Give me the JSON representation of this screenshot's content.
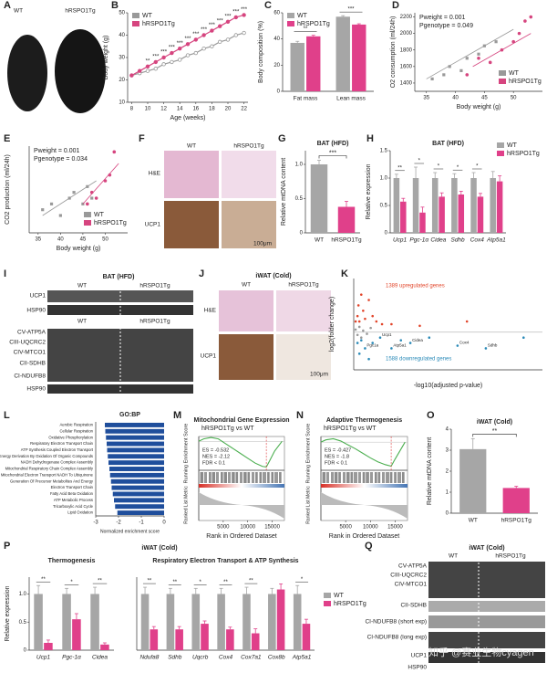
{
  "chart_data": [
    {
      "panel": "B",
      "type": "line",
      "x": [
        8,
        9,
        10,
        11,
        12,
        13,
        14,
        15,
        16,
        17,
        18,
        19,
        20,
        21,
        22
      ],
      "xlim": [
        7.5,
        22.5
      ],
      "xticks": [
        8,
        10,
        12,
        14,
        16,
        18,
        20,
        22
      ],
      "ylim": [
        10,
        50
      ],
      "yticks": [
        10,
        20,
        30,
        40,
        50
      ],
      "xlabel": "Age (weeks)",
      "ylabel": "Body weight (g)",
      "legend": "upper left",
      "series": [
        {
          "name": "WT",
          "color": "#999999",
          "values": [
            22,
            23,
            24,
            25,
            27,
            28,
            29,
            31,
            32,
            34,
            35,
            37,
            38,
            40,
            41
          ]
        },
        {
          "name": "hRSPO1Tg",
          "color": "#d6457f",
          "values": [
            22,
            24,
            26,
            28,
            30,
            32,
            34,
            36,
            38,
            40,
            42,
            44,
            46,
            48,
            49
          ]
        }
      ],
      "significance": [
        null,
        null,
        "**",
        "***",
        "***",
        "***",
        "***",
        "***",
        "***",
        "***",
        "***",
        "***",
        "***",
        "***",
        "***"
      ]
    },
    {
      "panel": "C",
      "type": "bar",
      "categories": [
        "Fat mass",
        "Lean mass"
      ],
      "ylim": [
        0,
        60
      ],
      "yticks": [
        0,
        20,
        40,
        60
      ],
      "ylabel": "Body composition (%)",
      "legend": "upper left",
      "series": [
        {
          "name": "WT",
          "color": "#a6a6a6",
          "values": [
            37,
            57
          ],
          "errors": [
            1.2,
            0.8
          ]
        },
        {
          "name": "hRSPO1Tg",
          "color": "#e0408a",
          "values": [
            42,
            51
          ],
          "errors": [
            0.8,
            0.6
          ]
        }
      ],
      "significance": [
        "**",
        "***"
      ]
    },
    {
      "panel": "D",
      "type": "scatter",
      "xlim": [
        33,
        55
      ],
      "xticks": [
        35,
        40,
        45,
        50
      ],
      "ylim": [
        1300,
        2250
      ],
      "yticks": [
        1400,
        1600,
        1800,
        2000,
        2200
      ],
      "xlabel": "Body weight (g)",
      "ylabel": "O2 consumption (ml/24h)",
      "legend": "lower right",
      "annotations": [
        "Pweight = 0.001",
        "Pgenotype = 0.049"
      ],
      "series": [
        {
          "name": "WT",
          "color": "#999999",
          "x": [
            36,
            38,
            39,
            41,
            42,
            44,
            45,
            47
          ],
          "values": [
            1450,
            1500,
            1600,
            1550,
            1700,
            1750,
            1850,
            1900
          ],
          "trend_x": [
            35,
            50
          ],
          "trend_y": [
            1450,
            2050
          ]
        },
        {
          "name": "hRSPO1Tg",
          "color": "#d6457f",
          "x": [
            42,
            44,
            46,
            48,
            50,
            51,
            52,
            53
          ],
          "values": [
            1500,
            1700,
            1650,
            1800,
            1900,
            2000,
            2150,
            2200
          ],
          "trend_x": [
            43,
            53
          ],
          "trend_y": [
            1600,
            2000
          ]
        }
      ]
    },
    {
      "panel": "E",
      "type": "scatter",
      "xlim": [
        33,
        55
      ],
      "xticks": [
        35,
        40,
        45,
        50
      ],
      "ylim": [
        950,
        1700
      ],
      "xlabel": "Body weight (g)",
      "ylabel": "CO2 production (ml/24h)",
      "legend": "lower right",
      "annotations": [
        "Pweight = 0.001",
        "Pgenotype = 0.034"
      ],
      "series": [
        {
          "name": "WT",
          "color": "#999999",
          "x": [
            36,
            38,
            40,
            42,
            43,
            45,
            46,
            47
          ],
          "values": [
            1150,
            1200,
            1100,
            1250,
            1300,
            1200,
            1350,
            1250
          ],
          "trend_x": [
            36,
            48
          ],
          "trend_y": [
            1100,
            1400
          ]
        },
        {
          "name": "hRSPO1Tg",
          "color": "#d6457f",
          "x": [
            46,
            47,
            48,
            50,
            51,
            52
          ],
          "values": [
            1200,
            1300,
            1250,
            1400,
            1450,
            1650
          ],
          "trend_x": [
            45,
            53
          ],
          "trend_y": [
            1200,
            1550
          ]
        }
      ]
    },
    {
      "panel": "G",
      "type": "bar",
      "title": "BAT (HFD)",
      "categories": [
        "WT",
        "hRSPO1Tg"
      ],
      "ylim": [
        0,
        1.2
      ],
      "yticks": [
        0,
        0.5,
        {
          "value": 1,
          "label": "1.0"
        }
      ],
      "ylabel": "Relative mtDNA content",
      "series": [
        {
          "color": [
            "#a6a6a6",
            "#e0408a"
          ],
          "values": [
            1.0,
            0.38
          ],
          "errors": [
            0.06,
            0.08
          ]
        }
      ],
      "significance": "***"
    },
    {
      "panel": "H",
      "type": "bar",
      "title": "BAT (HFD)",
      "categories": [
        "Ucp1",
        "Pgc-1α",
        "Cidea",
        "Sdhb",
        "Cox4",
        "Atp5a1"
      ],
      "ylim": [
        0,
        1.5
      ],
      "yticks": [
        0,
        0.5,
        {
          "value": 1,
          "label": "1.0"
        },
        1.5
      ],
      "ylabel": "Relative expression",
      "legend": "upper right",
      "series": [
        {
          "name": "WT",
          "color": "#a6a6a6",
          "values": [
            1,
            1,
            1,
            1,
            1,
            1
          ],
          "errors": [
            0.07,
            0.2,
            0.1,
            0.08,
            0.1,
            0.12
          ]
        },
        {
          "name": "hRSPO1Tg",
          "color": "#e0408a",
          "values": [
            0.57,
            0.37,
            0.66,
            0.7,
            0.66,
            0.94
          ],
          "errors": [
            0.06,
            0.1,
            0.07,
            0.06,
            0.06,
            0.1
          ]
        }
      ],
      "significance": [
        "**",
        "*",
        "*",
        "*",
        "*",
        null
      ]
    },
    {
      "panel": "K",
      "type": "volcano",
      "xlim": [
        0,
        100
      ],
      "ylim": [
        -7,
        10
      ],
      "xlabel": "-log10(adjusted p-value)",
      "ylabel": "log2(folder change)",
      "annotations": [
        "1389 upregulated genes",
        "1588 downregulated genes"
      ],
      "series": [
        {
          "color": "#e2452a",
          "x": [
            1,
            2,
            2.5,
            3,
            4,
            5,
            6,
            8,
            10,
            12,
            15,
            20,
            35,
            60
          ],
          "values": [
            2,
            3,
            5,
            2,
            7,
            4,
            2.5,
            6,
            3,
            2,
            1.5,
            1.5,
            1.2,
            2
          ]
        },
        {
          "color": "#2a8ab8",
          "x": [
            2,
            3,
            4,
            6,
            8,
            10,
            14,
            20,
            25,
            30,
            40,
            55,
            70,
            90
          ],
          "values": [
            -2,
            -4,
            -1.5,
            -3,
            -5,
            -2,
            -1,
            -3,
            -1.5,
            -2,
            -1,
            -2.5,
            -3,
            -1
          ],
          "labels": [
            null,
            null,
            null,
            "Pgc1a",
            null,
            null,
            "Ucp1",
            "Atp5a1",
            null,
            "Cidea",
            null,
            "Cox4",
            "Sdhb",
            null
          ]
        },
        {
          "color": "#999999",
          "x": [
            1,
            2,
            3,
            4,
            5,
            7,
            9
          ],
          "values": [
            0.5,
            -0.5,
            1,
            -1,
            0.3,
            -0.3,
            0.8
          ]
        }
      ]
    },
    {
      "panel": "L",
      "type": "bar",
      "orientation": "horizontal",
      "title": "GO:BP",
      "xlim": [
        -3,
        0
      ],
      "xticks": [
        -3,
        -2,
        -1,
        0
      ],
      "xlabel": "Normalized enrichment score",
      "categories": [
        "Aerobic Respiration",
        "Cellular Respiration",
        "Oxidative Phosphorylation",
        "Respiratory Electron Transport Chain",
        "ATP Synthesis Coupled Electron Transport",
        "Energy Derivation By Oxidation Of Organic Compounds",
        "NADH Dehydrogenase Complex Assembly",
        "Mitochondrial Respiratory Chain Complex Assembly",
        "Mitochondrial Electron Transport NADH To Ubiquinone",
        "Generation Of Precursor Metabolites And Energy",
        "Electron Transport Chain",
        "Fatty Acid Beta Oxidation",
        "ATP Metabolic Process",
        "Tricarboxylic Acid Cycle",
        "Lipid Oxidation"
      ],
      "series": [
        {
          "color": "#1f4e9c",
          "values": [
            -2.6,
            -2.58,
            -2.55,
            -2.52,
            -2.5,
            -2.47,
            -2.44,
            -2.4,
            -2.37,
            -2.33,
            -2.3,
            -2.25,
            -2.2,
            -2.15,
            -2.05
          ]
        }
      ]
    },
    {
      "panel": "M",
      "type": "gsea",
      "title": "Mitochondrial Gene Expression",
      "subtitle": "hRSPO1Tg vs WT",
      "ylabel": "Running Enrichment Score",
      "ylabel2": "Ranked List Metric",
      "xlabel": "Rank in Ordered Dataset",
      "xlim": [
        0,
        17500
      ],
      "xticks": [
        5000,
        10000,
        15000
      ],
      "ylim": [
        -0.6,
        0.1
      ],
      "stats": [
        "ES = -0.532",
        "NES = -2.12",
        "FDR < 0.1"
      ],
      "peak_x": 13800,
      "series": [
        {
          "color": "#4caf50",
          "x": [
            0,
            1000,
            2500,
            4000,
            5500,
            7000,
            8500,
            10000,
            11500,
            13000,
            13800,
            14500,
            15500,
            17000
          ],
          "values": [
            0,
            0.05,
            0.08,
            0.05,
            -0.05,
            -0.15,
            -0.25,
            -0.35,
            -0.45,
            -0.52,
            -0.532,
            -0.4,
            -0.2,
            0
          ]
        }
      ]
    },
    {
      "panel": "N",
      "type": "gsea",
      "title": "Adaptive Thermogenesis",
      "subtitle": "hRSPO1Tg vs WT",
      "ylabel": "Running Enrichment Score",
      "ylabel2": "Ranked List Metric",
      "xlabel": "Rank in Ordered Dataset",
      "xlim": [
        0,
        17500
      ],
      "xticks": [
        5000,
        10000,
        15000
      ],
      "ylim": [
        -0.5,
        0.1
      ],
      "stats": [
        "ES = -0.427",
        "NES = -1.8",
        "FDR < 0.1"
      ],
      "peak_x": 14200,
      "series": [
        {
          "color": "#4caf50",
          "x": [
            0,
            1000,
            2500,
            4000,
            5500,
            7000,
            8500,
            10000,
            11500,
            13000,
            14200,
            15000,
            16000,
            17000
          ],
          "values": [
            0,
            0.04,
            0.06,
            0.02,
            -0.05,
            -0.12,
            -0.2,
            -0.28,
            -0.35,
            -0.4,
            -0.427,
            -0.3,
            -0.15,
            0
          ]
        }
      ]
    },
    {
      "panel": "O",
      "type": "bar",
      "title": "iWAT (Cold)",
      "categories": [
        "WT",
        "hRSPO1Tg"
      ],
      "ylim": [
        0,
        4
      ],
      "yticks": [
        0,
        1,
        2,
        3,
        4
      ],
      "ylabel": "Relative mtDNA content",
      "series": [
        {
          "color": [
            "#a6a6a6",
            "#e0408a"
          ],
          "values": [
            3.05,
            1.2
          ],
          "errors": [
            0.5,
            0.08
          ]
        }
      ],
      "significance": "**"
    },
    {
      "panel": "P",
      "type": "bar",
      "title": "iWAT (Cold)",
      "subtitle": "Thermogenesis",
      "categories": [
        "Ucp1",
        "Pgc-1α",
        "Cidea"
      ],
      "ylim": [
        0,
        1.3
      ],
      "yticks": [
        0,
        0.5,
        {
          "value": 1,
          "label": "1.0"
        }
      ],
      "ylabel": "Relative expression",
      "series": [
        {
          "color": "#a6a6a6",
          "values": [
            1,
            1,
            1
          ],
          "errors": [
            0.15,
            0.1,
            0.12
          ]
        },
        {
          "color": "#e0408a",
          "values": [
            0.13,
            0.55,
            0.1
          ],
          "errors": [
            0.05,
            0.1,
            0.03
          ]
        }
      ],
      "significance": [
        "**",
        "*",
        "**"
      ]
    },
    {
      "type": "bar",
      "subtitle": "Respiratory Electron Transport & ATP Synthesis",
      "categories": [
        "Ndufa8",
        "Sdhb",
        "Uqcrb",
        "Cox4",
        "Cox7a1",
        "Cox8b",
        "Atp5a1"
      ],
      "ylim": [
        0,
        1.3
      ],
      "legend": "outside right",
      "series": [
        {
          "name": "WT",
          "color": "#a6a6a6",
          "values": [
            1,
            1,
            1,
            1,
            1,
            1,
            1
          ],
          "errors": [
            0.12,
            0.1,
            0.1,
            0.1,
            0.12,
            0.1,
            0.15
          ]
        },
        {
          "name": "hRSPO1Tg",
          "color": "#e0408a",
          "values": [
            0.37,
            0.37,
            0.47,
            0.37,
            0.3,
            1.08,
            0.47
          ],
          "errors": [
            0.05,
            0.05,
            0.05,
            0.04,
            0.08,
            0.1,
            0.08
          ]
        }
      ],
      "significance": [
        "**",
        "**",
        "*",
        "**",
        "**",
        null,
        "*"
      ]
    }
  ],
  "images": [
    {
      "panel": "A",
      "labels": [
        "WT",
        "hRSPO1Tg"
      ]
    },
    {
      "panel": "F",
      "labels": [
        "WT",
        "hRSPO1Tg",
        "H&E",
        "UCP1",
        "100μm"
      ]
    },
    {
      "panel": "I",
      "title": "BAT (HFD)",
      "labels": [
        "WT",
        "hRSPO1Tg",
        "UCP1",
        "HSP90",
        "WT",
        "hRSPO1Tg",
        "CV-ATP5A",
        "CIII-UQCRC2",
        "CIV-MTCO1",
        "CII-SDHB",
        "CI-NDUFB8",
        "HSP90"
      ]
    },
    {
      "panel": "J",
      "title": "iWAT (Cold)",
      "labels": [
        "WT",
        "hRSPO1Tg",
        "H&E",
        "UCP1",
        "100μm"
      ]
    },
    {
      "panel": "Q",
      "title": "iWAT (Cold)",
      "labels": [
        "WT",
        "hRSPO1Tg",
        "CV-ATP5A",
        "CIII-UQCRC2",
        "CIV-MTCO1",
        "CII-SDHB",
        "CI-NDUFB8 (short exp)",
        "CI-NDUFB8 (long exp)",
        "UCP1",
        "HSP90"
      ]
    }
  ],
  "watermark": "知乎 @赛业生物cyagen"
}
